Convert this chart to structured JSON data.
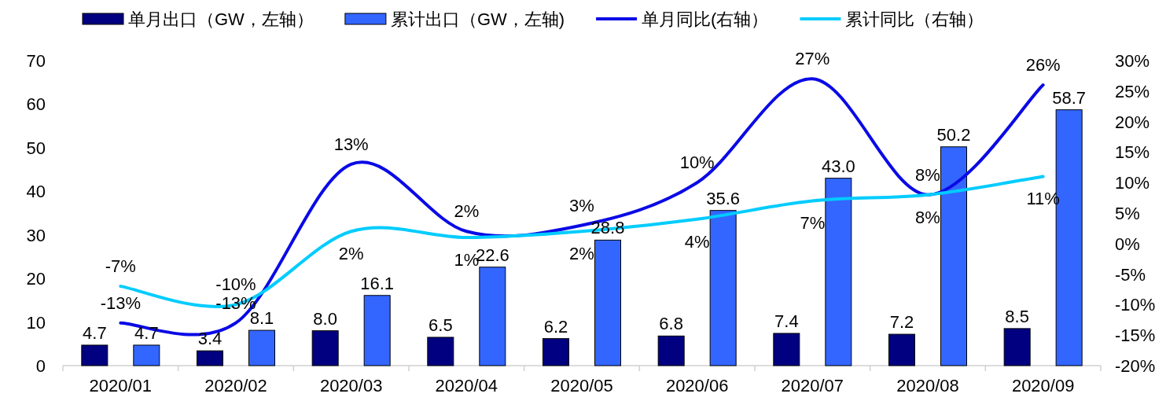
{
  "chart_data": {
    "type": "bar",
    "categories": [
      "2020/01",
      "2020/02",
      "2020/03",
      "2020/04",
      "2020/05",
      "2020/06",
      "2020/07",
      "2020/08",
      "2020/09"
    ],
    "series": [
      {
        "name": "单月出口（GW，左轴）",
        "color": "#000080",
        "values": [
          4.7,
          3.4,
          8.0,
          6.5,
          6.2,
          6.8,
          7.4,
          7.2,
          8.5
        ],
        "value_labels": [
          "4.7",
          "3.4",
          "8.0",
          "6.5",
          "6.2",
          "6.8",
          "7.4",
          "7.2",
          "8.5"
        ]
      },
      {
        "name": "累计出口（GW，左轴)",
        "color": "#3366ff",
        "values": [
          4.7,
          8.1,
          16.1,
          22.6,
          28.8,
          35.6,
          43.0,
          50.2,
          58.7
        ],
        "value_labels": [
          "4.7",
          "8.1",
          "16.1",
          "22.6",
          "28.8",
          "35.6",
          "43.0",
          "50.2",
          "58.7"
        ]
      },
      {
        "name": "单月同比(右轴）",
        "type": "line",
        "axis": "y2",
        "color": "#0a0ae6",
        "values": [
          -13,
          -13,
          13,
          2,
          3,
          10,
          27,
          8,
          26
        ],
        "value_labels": [
          "-13%",
          "-13%",
          "13%",
          "2%",
          "3%",
          "10%",
          "27%",
          "8%",
          "26%"
        ]
      },
      {
        "name": "累计同比（右轴）",
        "type": "line",
        "axis": "y2",
        "color": "#00ccff",
        "values": [
          -7,
          -10,
          2,
          1,
          2,
          4,
          7,
          8,
          11
        ],
        "value_labels": [
          "-7%",
          "-10%",
          "2%",
          "1%",
          "2%",
          "4%",
          "7%",
          "8%",
          "11%"
        ]
      }
    ],
    "ylim": [
      0,
      70
    ],
    "yticks": [
      0,
      10,
      20,
      30,
      40,
      50,
      60,
      70
    ],
    "y2lim": [
      -20,
      30
    ],
    "y2ticks": [
      {
        "value": -20,
        "label": "-20%"
      },
      {
        "value": -15,
        "label": "-15%"
      },
      {
        "value": -10,
        "label": "-10%"
      },
      {
        "value": -5,
        "label": "-5%"
      },
      {
        "value": 0,
        "label": "0%"
      },
      {
        "value": 5,
        "label": "5%"
      },
      {
        "value": 10,
        "label": "10%"
      },
      {
        "value": 15,
        "label": "15%"
      },
      {
        "value": 20,
        "label": "20%"
      },
      {
        "value": 25,
        "label": "25%"
      },
      {
        "value": 30,
        "label": "30%"
      }
    ],
    "legend": "top",
    "grid": false
  }
}
